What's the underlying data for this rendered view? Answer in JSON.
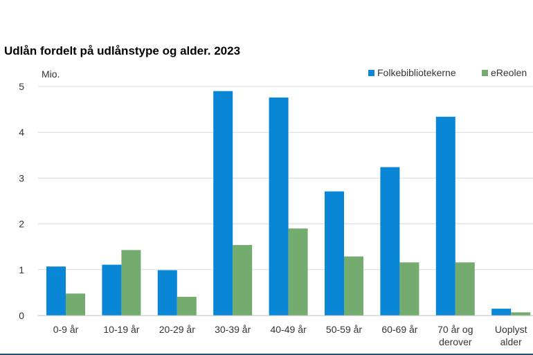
{
  "chart_data": {
    "type": "bar",
    "title": "Udlån fordelt på udlånstype og alder. 2023",
    "unit_label": "Mio.",
    "xlabel": "",
    "ylabel": "",
    "categories": [
      "0-9 år",
      "10-19 år",
      "20-29 år",
      "30-39 år",
      "40-49 år",
      "50-59 år",
      "60-69 år",
      "70 år og derover",
      "Uoplyst alder"
    ],
    "category_lines": [
      [
        "0-9 år"
      ],
      [
        "10-19 år"
      ],
      [
        "20-29 år"
      ],
      [
        "30-39 år"
      ],
      [
        "40-49 år"
      ],
      [
        "50-59 år"
      ],
      [
        "60-69 år"
      ],
      [
        "70 år og",
        "derover"
      ],
      [
        "Uoplyst",
        "alder"
      ]
    ],
    "series": [
      {
        "name": "Folkebibliotekerne",
        "color": "#0a86d6",
        "values": [
          1.07,
          1.11,
          0.99,
          4.9,
          4.76,
          2.71,
          3.24,
          4.34,
          0.15
        ]
      },
      {
        "name": "eReolen",
        "color": "#74ab6e",
        "values": [
          0.48,
          1.43,
          0.41,
          1.54,
          1.9,
          1.29,
          1.16,
          1.16,
          0.07
        ]
      }
    ],
    "ylim": [
      0,
      5
    ],
    "yticks": [
      0,
      1,
      2,
      3,
      4,
      5
    ],
    "grid": true,
    "gridline_color": "#d9d9d9",
    "legend_position": "top-right"
  }
}
